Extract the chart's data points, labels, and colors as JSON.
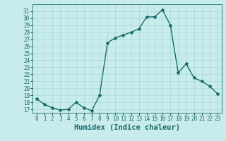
{
  "x": [
    0,
    1,
    2,
    3,
    4,
    5,
    6,
    7,
    8,
    9,
    10,
    11,
    12,
    13,
    14,
    15,
    16,
    17,
    18,
    19,
    20,
    21,
    22,
    23
  ],
  "y": [
    18.5,
    17.7,
    17.2,
    16.9,
    17.0,
    18.0,
    17.2,
    16.8,
    19.0,
    26.5,
    27.2,
    27.6,
    28.0,
    28.5,
    30.2,
    30.2,
    31.2,
    29.0,
    22.2,
    23.5,
    21.5,
    21.0,
    20.3,
    19.2
  ],
  "bg_color": "#c8ecec",
  "line_color": "#1a6b6b",
  "marker": "*",
  "marker_size": 3,
  "linewidth": 1.0,
  "xlabel": "Humidex (Indice chaleur)",
  "ylim": [
    16.5,
    32.0
  ],
  "xlim": [
    -0.5,
    23.5
  ],
  "yticks": [
    17,
    18,
    19,
    20,
    21,
    22,
    23,
    24,
    25,
    26,
    27,
    28,
    29,
    30,
    31
  ],
  "xticks": [
    0,
    1,
    2,
    3,
    4,
    5,
    6,
    7,
    8,
    9,
    10,
    11,
    12,
    13,
    14,
    15,
    16,
    17,
    18,
    19,
    20,
    21,
    22,
    23
  ],
  "grid_color": "#a8d8d8",
  "tick_labelsize": 5.5,
  "xlabel_fontsize": 7.5
}
